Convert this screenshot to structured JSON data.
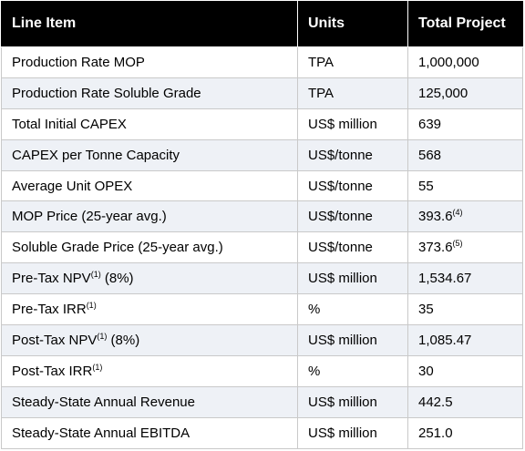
{
  "table": {
    "headers": [
      "Line Item",
      "Units",
      "Total Project"
    ],
    "rows": [
      {
        "item": "Production Rate MOP",
        "item_sup": "",
        "item_suffix": "",
        "units": "TPA",
        "value": "1,000,000",
        "value_sup": ""
      },
      {
        "item": "Production Rate Soluble Grade",
        "item_sup": "",
        "item_suffix": "",
        "units": "TPA",
        "value": "125,000",
        "value_sup": ""
      },
      {
        "item": "Total Initial CAPEX",
        "item_sup": "",
        "item_suffix": "",
        "units": "US$ million",
        "value": "639",
        "value_sup": ""
      },
      {
        "item": "CAPEX per Tonne Capacity",
        "item_sup": "",
        "item_suffix": "",
        "units": "US$/tonne",
        "value": "568",
        "value_sup": ""
      },
      {
        "item": "Average Unit OPEX",
        "item_sup": "",
        "item_suffix": "",
        "units": "US$/tonne",
        "value": "55",
        "value_sup": ""
      },
      {
        "item": "MOP Price (25-year avg.)",
        "item_sup": "",
        "item_suffix": "",
        "units": "US$/tonne",
        "value": "393.6",
        "value_sup": "(4)"
      },
      {
        "item": "Soluble Grade Price (25-year avg.)",
        "item_sup": "",
        "item_suffix": "",
        "units": "US$/tonne",
        "value": "373.6",
        "value_sup": "(5)"
      },
      {
        "item": "Pre-Tax NPV",
        "item_sup": "(1)",
        "item_suffix": " (8%)",
        "units": "US$ million",
        "value": "1,534.67",
        "value_sup": ""
      },
      {
        "item": "Pre-Tax IRR",
        "item_sup": "(1)",
        "item_suffix": "",
        "units": "%",
        "value": "35",
        "value_sup": ""
      },
      {
        "item": "Post-Tax NPV",
        "item_sup": "(1)",
        "item_suffix": " (8%)",
        "units": "US$ million",
        "value": "1,085.47",
        "value_sup": ""
      },
      {
        "item": "Post-Tax IRR",
        "item_sup": "(1)",
        "item_suffix": "",
        "units": "%",
        "value": "30",
        "value_sup": ""
      },
      {
        "item": "Steady-State Annual Revenue",
        "item_sup": "",
        "item_suffix": "",
        "units": "US$ million",
        "value": "442.5",
        "value_sup": ""
      },
      {
        "item": "Steady-State Annual EBITDA",
        "item_sup": "",
        "item_suffix": "",
        "units": "US$ million",
        "value": "251.0",
        "value_sup": ""
      }
    ]
  },
  "colors": {
    "header_bg": "#000000",
    "header_text": "#ffffff",
    "row_alt_bg": "#eef1f6",
    "border": "#c9c9c9"
  }
}
